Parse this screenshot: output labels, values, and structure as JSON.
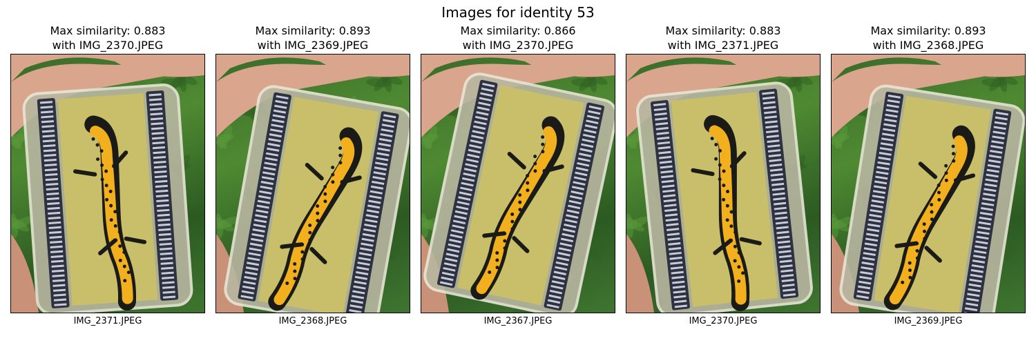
{
  "suptitle": "Images for identity 53",
  "panels": [
    {
      "similarity_line": "Max similarity: 0.883",
      "match_line": "with IMG_2370.JPEG",
      "filename": "IMG_2371.JPEG"
    },
    {
      "similarity_line": "Max similarity: 0.893",
      "match_line": "with IMG_2369.JPEG",
      "filename": "IMG_2368.JPEG"
    },
    {
      "similarity_line": "Max similarity: 0.866",
      "match_line": "with IMG_2370.JPEG",
      "filename": "IMG_2367.JPEG"
    },
    {
      "similarity_line": "Max similarity: 0.883",
      "match_line": "with IMG_2371.JPEG",
      "filename": "IMG_2370.JPEG"
    },
    {
      "similarity_line": "Max similarity: 0.893",
      "match_line": "with IMG_2368.JPEG",
      "filename": "IMG_2369.JPEG"
    }
  ],
  "photo_subject": "hand holding clear box with yellow-bellied spotted newt on sponge",
  "colors": {
    "grass": "#3f7a2e",
    "sponge": "#c9bf6a",
    "newt_belly": "#f2b01e",
    "newt_spots": "#1a1a16",
    "skin": "#d9a58c"
  }
}
